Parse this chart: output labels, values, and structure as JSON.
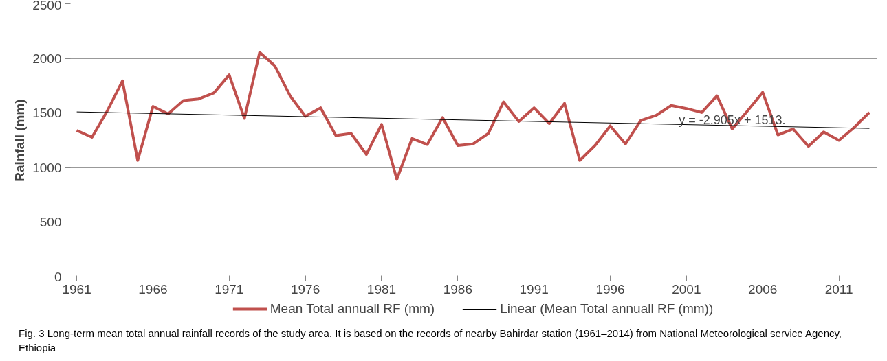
{
  "chart_data": {
    "type": "line",
    "ylabel": "Rainfall (mm)",
    "x": [
      1961,
      1962,
      1963,
      1964,
      1965,
      1966,
      1967,
      1968,
      1969,
      1970,
      1971,
      1972,
      1973,
      1974,
      1975,
      1976,
      1977,
      1978,
      1979,
      1980,
      1981,
      1982,
      1983,
      1984,
      1985,
      1986,
      1987,
      1988,
      1989,
      1990,
      1991,
      1992,
      1993,
      1994,
      1995,
      1996,
      1997,
      1998,
      1999,
      2000,
      2001,
      2002,
      2003,
      2004,
      2005,
      2006,
      2007,
      2008,
      2009,
      2010,
      2011,
      2012,
      2013
    ],
    "series": [
      {
        "name": "Mean Total annuall RF (mm)",
        "color": "#c0504d",
        "values": [
          1341,
          1278,
          1519,
          1794,
          1066,
          1560,
          1492,
          1615,
          1629,
          1684,
          1849,
          1451,
          2055,
          1931,
          1657,
          1470,
          1547,
          1294,
          1313,
          1121,
          1396,
          893,
          1267,
          1212,
          1459,
          1203,
          1217,
          1313,
          1602,
          1423,
          1547,
          1404,
          1588,
          1066,
          1203,
          1382,
          1217,
          1431,
          1478,
          1569,
          1541,
          1505,
          1657,
          1354,
          1519,
          1690,
          1300,
          1354,
          1195,
          1327,
          1250,
          1368,
          1505
        ]
      },
      {
        "name": "Linear (Mean Total annuall RF (mm))",
        "color": "#000000",
        "x": [
          1961,
          2013
        ],
        "values": [
          1510,
          1359
        ]
      }
    ],
    "xlim": [
      1960.5,
      2013.5
    ],
    "xticks": [
      1961,
      1966,
      1971,
      1976,
      1981,
      1986,
      1991,
      1996,
      2001,
      2006,
      2011
    ],
    "ylim": [
      0,
      2500
    ],
    "yticks": [
      0,
      500,
      1000,
      1500,
      2000,
      2500
    ],
    "grid": "y",
    "legend": "bottom",
    "annotations": [
      {
        "text": "y = -2.905x + 1513.",
        "x": 2004,
        "y": 1359
      },
      "Fig. 3  Long-term mean total annual rainfall records of the study area. It is based on the records of nearby Bahirdar station (1961–2014) from National Meteorological service Agency, Ethiopia"
    ]
  }
}
